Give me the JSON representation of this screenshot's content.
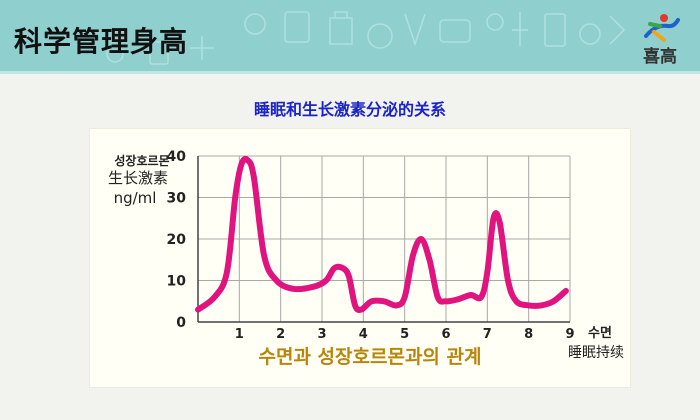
{
  "header": {
    "title": "科学管理身高",
    "logo_text": "喜高",
    "band_color": "#8fd0cf"
  },
  "chart_data": {
    "type": "line",
    "title": "睡眠和生长激素分泌的关系",
    "subtitle": "수면과 성장호르몬과의 관계",
    "ylabel_ko": "성장호르몬",
    "ylabel": "生长激素",
    "yunit": "ng/ml",
    "xlabel_ko": "수면",
    "xlabel": "睡眠持续",
    "x_ticks": [
      "0",
      "1",
      "2",
      "3",
      "4",
      "5",
      "6",
      "7",
      "8",
      "9"
    ],
    "y_ticks": [
      "0",
      "10",
      "20",
      "30",
      "40"
    ],
    "xlim": [
      0,
      9
    ],
    "ylim": [
      0,
      40
    ],
    "grid": true,
    "line_color": "#e0137f",
    "series": [
      {
        "x": [
          0,
          0.4,
          0.7,
          0.9,
          1.05,
          1.2,
          1.35,
          1.6,
          1.9,
          2.3,
          2.8,
          3.1,
          3.3,
          3.5,
          3.65,
          3.8,
          3.95,
          4.2,
          4.5,
          4.8,
          5.0,
          5.2,
          5.4,
          5.6,
          5.8,
          6.0,
          6.3,
          6.6,
          6.85,
          7.0,
          7.15,
          7.3,
          7.5,
          7.7,
          8.0,
          8.3,
          8.6,
          8.9
        ],
        "y": [
          3,
          6,
          12,
          30,
          38,
          39,
          35,
          16,
          10,
          8,
          8.5,
          10,
          13,
          13,
          11,
          4,
          3,
          5,
          5,
          4,
          6,
          16,
          20,
          15,
          6,
          5,
          5.5,
          6.5,
          6,
          12,
          25,
          24,
          10,
          5,
          4,
          4,
          5,
          7.5
        ]
      }
    ]
  }
}
